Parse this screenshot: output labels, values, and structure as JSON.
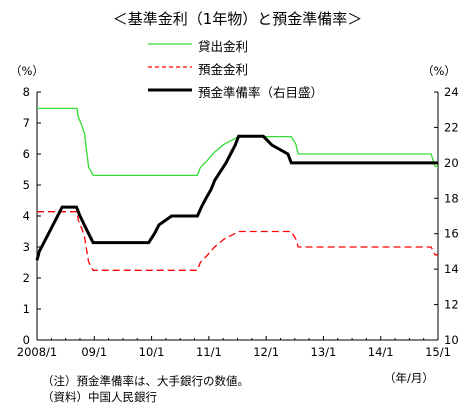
{
  "chart_data": {
    "type": "line",
    "title": "＜基準金利（1年物）と預金準備率＞",
    "y_unit_left": "（%）",
    "y_unit_right": "（%）",
    "x_unit": "（年/月）",
    "x_ticks": [
      "2008/1",
      "09/1",
      "10/1",
      "11/1",
      "12/1",
      "13/1",
      "14/1",
      "15/1"
    ],
    "ylim": [
      0,
      8
    ],
    "y_ticks": [
      "0",
      "1",
      "2",
      "3",
      "4",
      "5",
      "6",
      "7",
      "8"
    ],
    "ylim_right": [
      10,
      24
    ],
    "y_ticks_right": [
      "10",
      "12",
      "14",
      "16",
      "18",
      "20",
      "22",
      "24"
    ],
    "legend_placement": "top-center",
    "series": [
      {
        "name": "貸出金利",
        "axis": "left",
        "color": "#33dd33",
        "style": "solid",
        "points": [
          [
            2008.0,
            7.47
          ],
          [
            2008.7,
            7.47
          ],
          [
            2008.72,
            7.2
          ],
          [
            2008.78,
            6.93
          ],
          [
            2008.83,
            6.66
          ],
          [
            2008.9,
            5.58
          ],
          [
            2008.98,
            5.31
          ],
          [
            2010.8,
            5.31
          ],
          [
            2010.85,
            5.56
          ],
          [
            2010.98,
            5.81
          ],
          [
            2011.1,
            6.06
          ],
          [
            2011.26,
            6.31
          ],
          [
            2011.52,
            6.56
          ],
          [
            2012.44,
            6.56
          ],
          [
            2012.52,
            6.31
          ],
          [
            2012.56,
            6.0
          ],
          [
            2014.88,
            6.0
          ],
          [
            2014.95,
            5.6
          ],
          [
            2015.0,
            5.6
          ]
        ]
      },
      {
        "name": "預金金利",
        "axis": "left",
        "color": "#ff0000",
        "style": "dashed",
        "points": [
          [
            2008.0,
            4.14
          ],
          [
            2008.7,
            4.14
          ],
          [
            2008.72,
            3.87
          ],
          [
            2008.78,
            3.6
          ],
          [
            2008.83,
            3.33
          ],
          [
            2008.9,
            2.52
          ],
          [
            2008.98,
            2.25
          ],
          [
            2010.8,
            2.25
          ],
          [
            2010.85,
            2.5
          ],
          [
            2010.98,
            2.75
          ],
          [
            2011.1,
            3.0
          ],
          [
            2011.26,
            3.25
          ],
          [
            2011.52,
            3.5
          ],
          [
            2012.44,
            3.5
          ],
          [
            2012.52,
            3.25
          ],
          [
            2012.56,
            3.0
          ],
          [
            2014.88,
            3.0
          ],
          [
            2014.95,
            2.75
          ],
          [
            2015.0,
            2.75
          ]
        ]
      },
      {
        "name": "預金準備率（右目盛）",
        "axis": "right",
        "color": "#000000",
        "style": "solid",
        "points": [
          [
            2008.0,
            14.5
          ],
          [
            2008.04,
            15.0
          ],
          [
            2008.12,
            15.5
          ],
          [
            2008.2,
            16.0
          ],
          [
            2008.28,
            16.5
          ],
          [
            2008.36,
            17.0
          ],
          [
            2008.44,
            17.5
          ],
          [
            2008.69,
            17.5
          ],
          [
            2008.75,
            17.0
          ],
          [
            2008.9,
            16.0
          ],
          [
            2008.98,
            15.5
          ],
          [
            2009.95,
            15.5
          ],
          [
            2010.05,
            16.0
          ],
          [
            2010.13,
            16.5
          ],
          [
            2010.35,
            17.0
          ],
          [
            2010.8,
            17.0
          ],
          [
            2010.87,
            17.5
          ],
          [
            2010.95,
            18.0
          ],
          [
            2011.04,
            18.5
          ],
          [
            2011.1,
            19.0
          ],
          [
            2011.2,
            19.5
          ],
          [
            2011.3,
            20.0
          ],
          [
            2011.38,
            20.5
          ],
          [
            2011.46,
            21.0
          ],
          [
            2011.52,
            21.5
          ],
          [
            2011.95,
            21.5
          ],
          [
            2012.1,
            21.0
          ],
          [
            2012.38,
            20.5
          ],
          [
            2012.44,
            20.0
          ],
          [
            2015.0,
            20.0
          ]
        ]
      }
    ]
  },
  "notes": [
    "（注）預金準備率は、大手銀行の数値。",
    "（資料）中国人民銀行"
  ]
}
